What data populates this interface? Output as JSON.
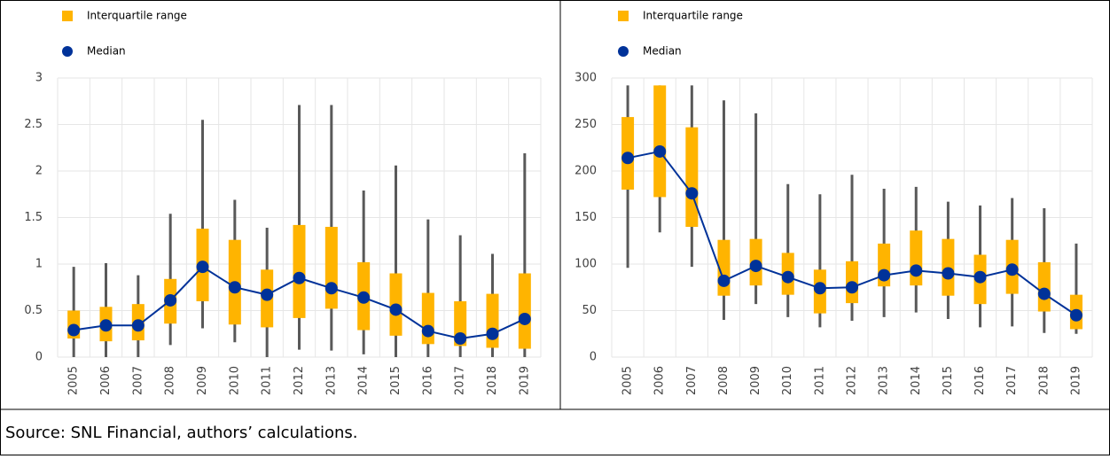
{
  "chart_data": [
    {
      "type": "box",
      "legend": [
        {
          "name": "Interquartile range",
          "color": "#ffb400"
        },
        {
          "name": "Median",
          "color": "#003299"
        }
      ],
      "categories": [
        "2005",
        "2006",
        "2007",
        "2008",
        "2009",
        "2010",
        "2011",
        "2012",
        "2013",
        "2014",
        "2015",
        "2016",
        "2017",
        "2018",
        "2019"
      ],
      "min": [
        0,
        0,
        0,
        0.13,
        0.31,
        0.16,
        0,
        0.08,
        0.07,
        0.03,
        0,
        0,
        0,
        0,
        0
      ],
      "q1": [
        0.2,
        0.17,
        0.18,
        0.36,
        0.6,
        0.35,
        0.32,
        0.42,
        0.52,
        0.29,
        0.23,
        0.14,
        0.12,
        0.1,
        0.09
      ],
      "median": [
        0.29,
        0.34,
        0.34,
        0.61,
        0.97,
        0.75,
        0.67,
        0.85,
        0.74,
        0.64,
        0.51,
        0.28,
        0.2,
        0.25,
        0.41
      ],
      "q3": [
        0.5,
        0.54,
        0.57,
        0.84,
        1.38,
        1.26,
        0.94,
        1.42,
        1.4,
        1.02,
        0.9,
        0.69,
        0.6,
        0.68,
        0.9
      ],
      "max": [
        0.97,
        1.01,
        0.88,
        1.54,
        2.55,
        1.69,
        1.39,
        2.71,
        2.71,
        1.79,
        2.06,
        1.48,
        1.31,
        1.11,
        2.19
      ],
      "ylim": [
        0,
        3
      ],
      "yticks": [
        0,
        0.5,
        1,
        1.5,
        2,
        2.5,
        3
      ],
      "grid": true
    },
    {
      "type": "box",
      "legend": [
        {
          "name": "Interquartile range",
          "color": "#ffb400"
        },
        {
          "name": "Median",
          "color": "#003299"
        }
      ],
      "categories": [
        "2005",
        "2006",
        "2007",
        "2008",
        "2009",
        "2010",
        "2011",
        "2012",
        "2013",
        "2014",
        "2015",
        "2016",
        "2017",
        "2018",
        "2019"
      ],
      "min": [
        96,
        134,
        97,
        40,
        57,
        43,
        32,
        39,
        43,
        48,
        41,
        32,
        33,
        26,
        25
      ],
      "q1": [
        180,
        172,
        140,
        66,
        77,
        67,
        47,
        58,
        76,
        77,
        66,
        57,
        68,
        49,
        30
      ],
      "median": [
        214,
        221,
        176,
        82,
        98,
        86,
        74,
        75,
        88,
        93,
        90,
        86,
        94,
        68,
        45
      ],
      "q3": [
        258,
        292,
        247,
        126,
        127,
        112,
        94,
        103,
        122,
        136,
        127,
        110,
        126,
        102,
        67
      ],
      "max": [
        292,
        292,
        292,
        276,
        262,
        186,
        175,
        196,
        181,
        183,
        167,
        163,
        171,
        160,
        122
      ],
      "ylim": [
        0,
        300
      ],
      "yticks": [
        0,
        50,
        100,
        150,
        200,
        250,
        300
      ],
      "grid": true
    }
  ],
  "source": "Source: SNL Financial, authors’ calculations."
}
